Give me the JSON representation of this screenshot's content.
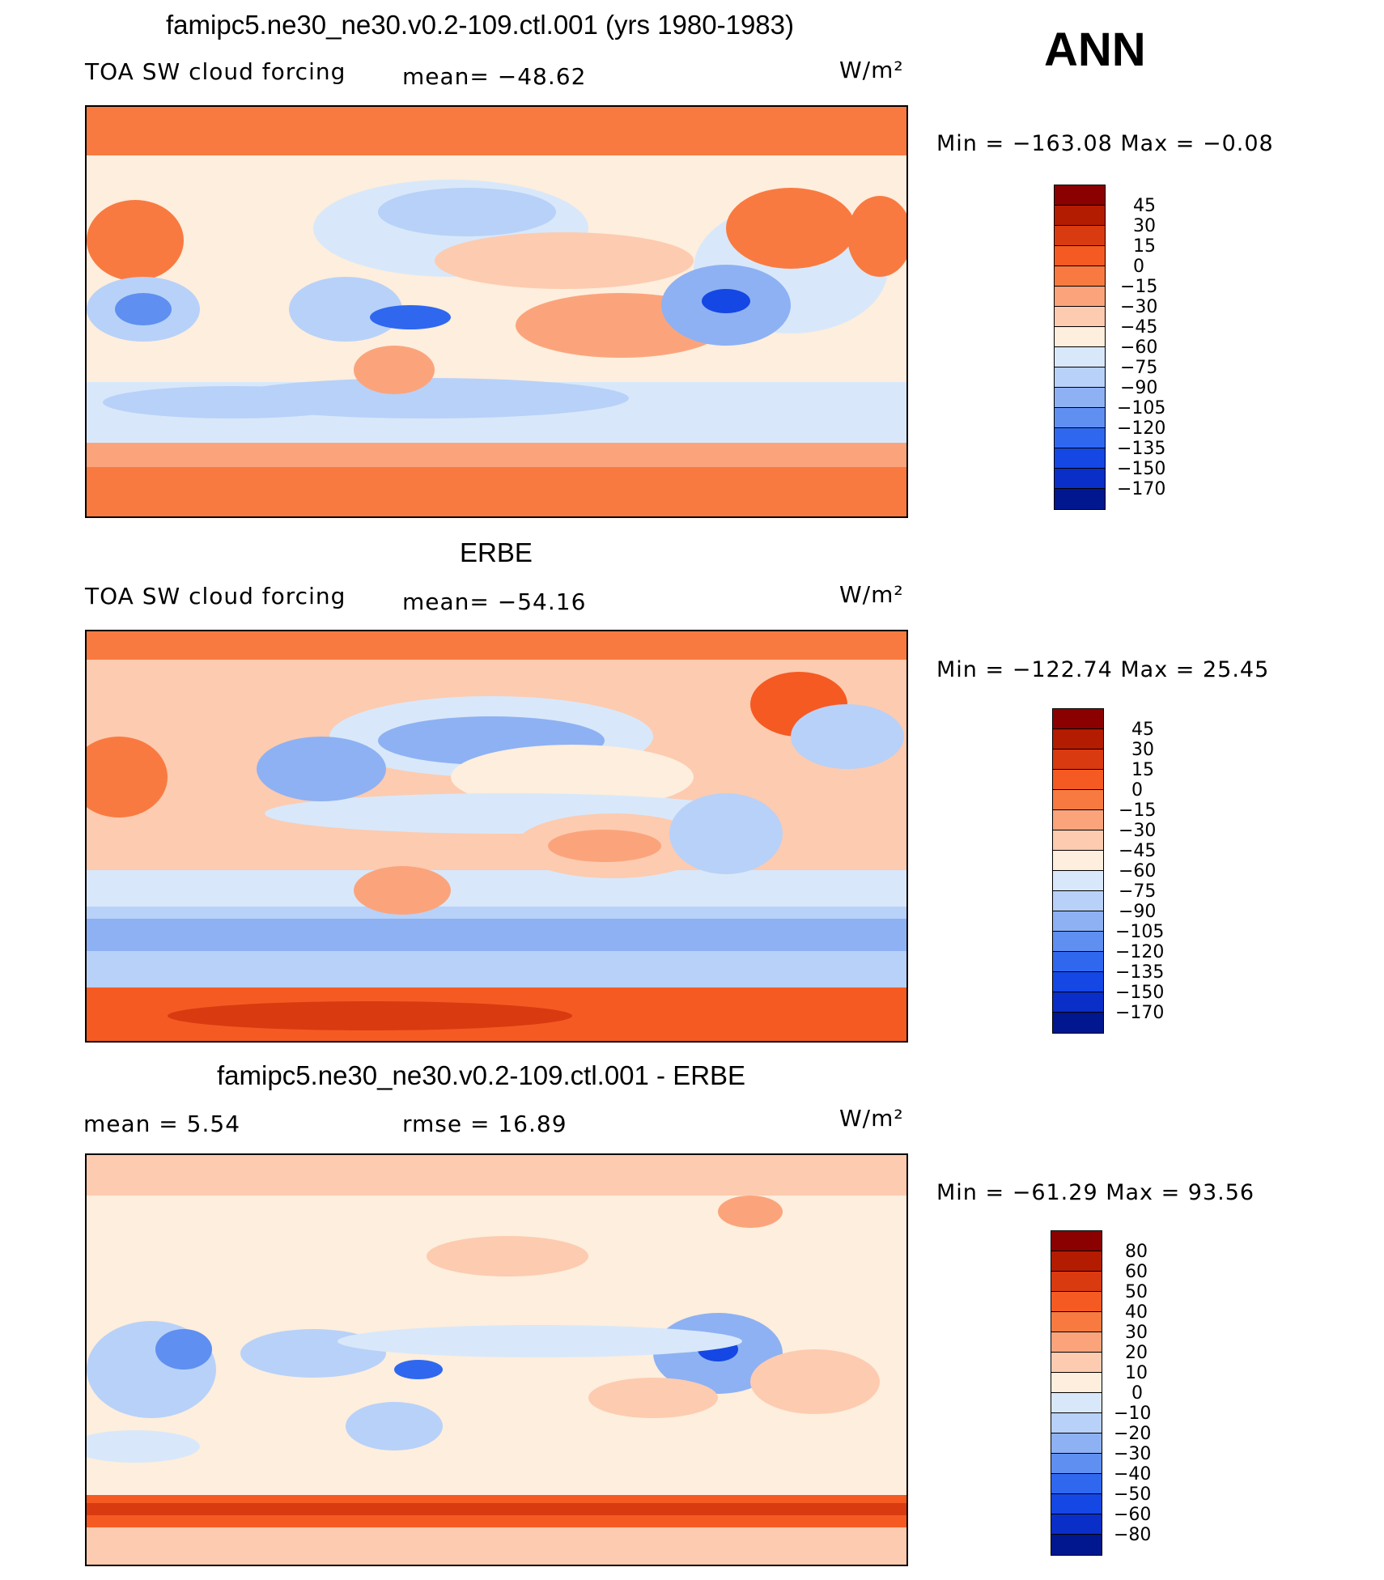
{
  "season": "ANN",
  "units_label": "W/m²",
  "panels": [
    {
      "title": "famipc5.ne30_ne30.v0.2-109.ctl.001 (yrs 1980-1983)",
      "left_label": "TOA SW cloud forcing",
      "center_label": "mean=  −48.62",
      "units": "W/m²",
      "minmax": "Min  =  −163.08  Max  =    −0.08",
      "colorbar": {
        "colors": [
          "#8b0000",
          "#b31c00",
          "#d93a10",
          "#f55a22",
          "#f97a40",
          "#fba47c",
          "#fdcbb0",
          "#fdeedd",
          "#d8e8fa",
          "#b8d1f8",
          "#8eb1f3",
          "#5f8ff0",
          "#2f68ef",
          "#1547e4",
          "#0a2ec8",
          "#00178f"
        ],
        "labels": [
          "45",
          "30",
          "15",
          "0",
          "−15",
          "−30",
          "−45",
          "−60",
          "−75",
          "−90",
          "−105",
          "−120",
          "−135",
          "−150",
          "−170"
        ]
      }
    },
    {
      "title": "ERBE",
      "left_label": "TOA SW cloud forcing",
      "center_label": "mean=  −54.16",
      "units": "W/m²",
      "minmax": "Min  =  −122.74  Max  =    25.45",
      "colorbar": {
        "colors": [
          "#8b0000",
          "#b31c00",
          "#d93a10",
          "#f55a22",
          "#f97a40",
          "#fba47c",
          "#fdcbb0",
          "#fdeedd",
          "#d8e8fa",
          "#b8d1f8",
          "#8eb1f3",
          "#5f8ff0",
          "#2f68ef",
          "#1547e4",
          "#0a2ec8",
          "#00178f"
        ],
        "labels": [
          "45",
          "30",
          "15",
          "0",
          "−15",
          "−30",
          "−45",
          "−60",
          "−75",
          "−90",
          "−105",
          "−120",
          "−135",
          "−150",
          "−170"
        ]
      }
    },
    {
      "title": "famipc5.ne30_ne30.v0.2-109.ctl.001 - ERBE",
      "left_label": "mean  =     5.54",
      "center_label": "rmse  =    16.89",
      "units": "W/m²",
      "minmax": "Min  =  −61.29  Max  =    93.56",
      "colorbar": {
        "colors": [
          "#8b0000",
          "#b31c00",
          "#d93a10",
          "#f55a22",
          "#f97a40",
          "#fba47c",
          "#fdcbb0",
          "#fdeedd",
          "#d8e8fa",
          "#b8d1f8",
          "#8eb1f3",
          "#5f8ff0",
          "#2f68ef",
          "#1547e4",
          "#0a2ec8",
          "#00178f"
        ],
        "labels": [
          "80",
          "60",
          "50",
          "40",
          "30",
          "20",
          "10",
          "0",
          "−10",
          "−20",
          "−30",
          "−40",
          "−50",
          "−60",
          "−80"
        ]
      }
    }
  ]
}
